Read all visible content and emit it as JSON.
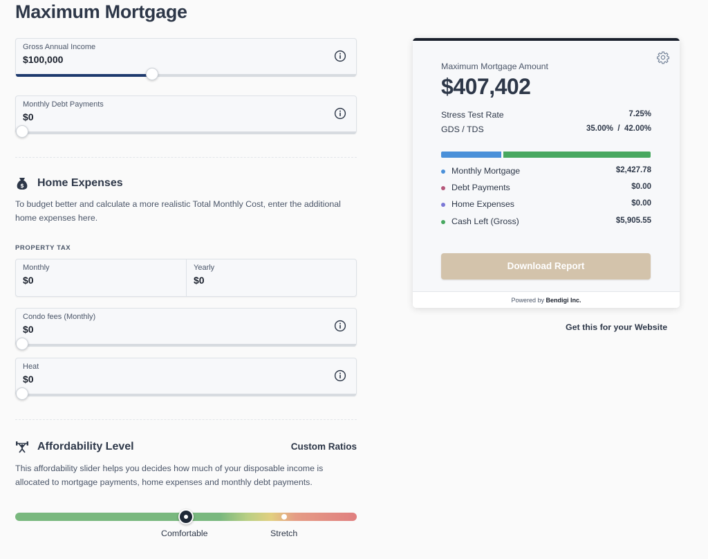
{
  "page": {
    "title": "Maximum Mortgage"
  },
  "income": {
    "label": "Gross Annual Income",
    "value": "$100,000",
    "slider_fraction": 0.4
  },
  "debt": {
    "label": "Monthly Debt Payments",
    "value": "$0",
    "slider_fraction": 0
  },
  "home_expenses": {
    "title": "Home Expenses",
    "description": "To budget better and calculate a more realistic Total Monthly Cost, enter the additional home expenses here.",
    "property_tax": {
      "heading": "PROPERTY TAX",
      "monthly_label": "Monthly",
      "monthly_value": "$0",
      "yearly_label": "Yearly",
      "yearly_value": "$0"
    },
    "condo": {
      "label": "Condo fees (Monthly)",
      "value": "$0",
      "slider_fraction": 0
    },
    "heat": {
      "label": "Heat",
      "value": "$0",
      "slider_fraction": 0
    }
  },
  "affordability": {
    "title": "Affordability Level",
    "custom_ratios": "Custom Ratios",
    "description": "This affordability slider helps you decides how much of your disposable income is allocated to mortgage payments, home expenses and monthly debt payments.",
    "comfortable_label": "Comfortable",
    "stretch_label": "Stretch"
  },
  "result": {
    "amount_label": "Maximum Mortgage Amount",
    "amount": "$407,402",
    "stress_label": "Stress Test Rate",
    "stress_value": "7.25%",
    "gds_label": "GDS / TDS",
    "gds_value": "35.00%  /  42.00%",
    "legend": [
      {
        "label": "Monthly Mortgage",
        "value": "$2,427.78",
        "color": "#4a90d9"
      },
      {
        "label": "Debt Payments",
        "value": "$0.00",
        "color": "#b5577a"
      },
      {
        "label": "Home Expenses",
        "value": "$0.00",
        "color": "#7b78d6"
      },
      {
        "label": "Cash Left (Gross)",
        "value": "$5,905.55",
        "color": "#48a860"
      }
    ],
    "download_label": "Download Report",
    "powered_prefix": "Powered by",
    "powered_brand": "Bendigi Inc."
  },
  "get_this": "Get this for your Website"
}
